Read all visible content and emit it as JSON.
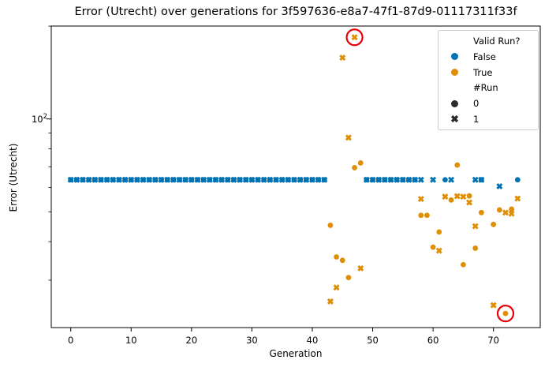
{
  "chart_data": {
    "type": "scatter",
    "title": "Error (Utrecht) over generations for 3f597636-e8a7-47f1-87d9-01117311f33f",
    "xlabel": "Generation",
    "ylabel": "Error (Utrecht)",
    "x_ticks": [
      0,
      10,
      20,
      30,
      40,
      50,
      60,
      70
    ],
    "xlim": [
      -3.2,
      77.7
    ],
    "y_scale": "log",
    "ylim": [
      21.1,
      200.3
    ],
    "grid": false,
    "y_major_ticks": [
      {
        "value": 100,
        "base": "10",
        "exponent": "2"
      }
    ],
    "y_minor_tick_values": [
      200,
      90,
      80,
      70,
      60,
      50,
      40,
      30
    ],
    "legend": {
      "position": "upper right",
      "hue_title": "Valid Run?",
      "hue_entries": [
        {
          "label": "False",
          "color": "#0173b2"
        },
        {
          "label": "True",
          "color": "#de8f05"
        }
      ],
      "style_title": "#Run",
      "style_marker_color": "#2b2b2b",
      "style_entries": [
        {
          "label": "0",
          "marker": "circle"
        },
        {
          "label": "1",
          "marker": "x"
        }
      ]
    },
    "series": [
      {
        "name": "False",
        "valid": "False",
        "color": "#0173b2",
        "runs": [
          {
            "run": 0,
            "marker": "circle",
            "points": [
              [
                0,
                63.5
              ],
              [
                1,
                63.5
              ],
              [
                2,
                63.5
              ],
              [
                3,
                63.5
              ],
              [
                4,
                63.5
              ],
              [
                5,
                63.5
              ],
              [
                6,
                63.5
              ],
              [
                7,
                63.5
              ],
              [
                8,
                63.5
              ],
              [
                9,
                63.5
              ],
              [
                10,
                63.5
              ],
              [
                11,
                63.5
              ],
              [
                12,
                63.5
              ],
              [
                13,
                63.5
              ],
              [
                14,
                63.5
              ],
              [
                15,
                63.5
              ],
              [
                16,
                63.5
              ],
              [
                17,
                63.5
              ],
              [
                18,
                63.5
              ],
              [
                19,
                63.5
              ],
              [
                20,
                63.5
              ],
              [
                21,
                63.5
              ],
              [
                22,
                63.5
              ],
              [
                23,
                63.5
              ],
              [
                24,
                63.5
              ],
              [
                25,
                63.5
              ],
              [
                26,
                63.5
              ],
              [
                27,
                63.5
              ],
              [
                28,
                63.5
              ],
              [
                29,
                63.5
              ],
              [
                30,
                63.5
              ],
              [
                31,
                63.5
              ],
              [
                32,
                63.5
              ],
              [
                33,
                63.5
              ],
              [
                34,
                63.5
              ],
              [
                35,
                63.5
              ],
              [
                36,
                63.5
              ],
              [
                37,
                63.5
              ],
              [
                38,
                63.5
              ],
              [
                39,
                63.5
              ],
              [
                40,
                63.5
              ],
              [
                41,
                63.5
              ],
              [
                42,
                63.5
              ],
              [
                49,
                63.5
              ],
              [
                50,
                63.5
              ],
              [
                51,
                63.5
              ],
              [
                52,
                63.5
              ],
              [
                53,
                63.5
              ],
              [
                54,
                63.5
              ],
              [
                55,
                63.5
              ],
              [
                56,
                63.5
              ],
              [
                57,
                63.5
              ],
              [
                62,
                63.5
              ],
              [
                68,
                63.5
              ],
              [
                74,
                63.5
              ]
            ]
          },
          {
            "run": 1,
            "marker": "x",
            "points": [
              [
                0,
                63.5
              ],
              [
                1,
                63.5
              ],
              [
                2,
                63.5
              ],
              [
                3,
                63.5
              ],
              [
                4,
                63.5
              ],
              [
                5,
                63.5
              ],
              [
                6,
                63.5
              ],
              [
                7,
                63.5
              ],
              [
                8,
                63.5
              ],
              [
                9,
                63.5
              ],
              [
                10,
                63.5
              ],
              [
                11,
                63.5
              ],
              [
                12,
                63.5
              ],
              [
                13,
                63.5
              ],
              [
                14,
                63.5
              ],
              [
                15,
                63.5
              ],
              [
                16,
                63.5
              ],
              [
                17,
                63.5
              ],
              [
                18,
                63.5
              ],
              [
                19,
                63.5
              ],
              [
                20,
                63.5
              ],
              [
                21,
                63.5
              ],
              [
                22,
                63.5
              ],
              [
                23,
                63.5
              ],
              [
                24,
                63.5
              ],
              [
                25,
                63.5
              ],
              [
                26,
                63.5
              ],
              [
                27,
                63.5
              ],
              [
                28,
                63.5
              ],
              [
                29,
                63.5
              ],
              [
                30,
                63.5
              ],
              [
                31,
                63.5
              ],
              [
                32,
                63.5
              ],
              [
                33,
                63.5
              ],
              [
                34,
                63.5
              ],
              [
                35,
                63.5
              ],
              [
                36,
                63.5
              ],
              [
                37,
                63.5
              ],
              [
                38,
                63.5
              ],
              [
                39,
                63.5
              ],
              [
                40,
                63.5
              ],
              [
                41,
                63.5
              ],
              [
                42,
                63.5
              ],
              [
                49,
                63.5
              ],
              [
                50,
                63.5
              ],
              [
                51,
                63.5
              ],
              [
                52,
                63.5
              ],
              [
                53,
                63.5
              ],
              [
                54,
                63.5
              ],
              [
                55,
                63.5
              ],
              [
                56,
                63.5
              ],
              [
                57,
                63.5
              ],
              [
                58,
                63.5
              ],
              [
                60,
                63.5
              ],
              [
                63,
                63.5
              ],
              [
                67,
                63.5
              ],
              [
                68,
                63.5
              ],
              [
                71,
                60.5
              ]
            ]
          }
        ]
      },
      {
        "name": "True",
        "valid": "True",
        "color": "#de8f05",
        "runs": [
          {
            "run": 0,
            "marker": "circle",
            "points": [
              [
                43,
                45.2
              ],
              [
                44,
                35.7
              ],
              [
                45,
                34.8
              ],
              [
                46,
                30.6
              ],
              [
                47,
                69.5
              ],
              [
                48,
                72
              ],
              [
                58,
                48.7
              ],
              [
                59,
                48.7
              ],
              [
                60,
                38.4
              ],
              [
                61,
                43
              ],
              [
                63,
                54.6
              ],
              [
                64,
                70.9
              ],
              [
                65,
                33.7
              ],
              [
                66,
                56.3
              ],
              [
                67,
                38.1
              ],
              [
                68,
                49.7
              ],
              [
                70,
                45.5
              ],
              [
                71,
                50.7
              ],
              [
                72,
                23.4
              ],
              [
                73,
                51
              ]
            ]
          },
          {
            "run": 1,
            "marker": "x",
            "points": [
              [
                43,
                25.6
              ],
              [
                44,
                28.4
              ],
              [
                45,
                158
              ],
              [
                46,
                87
              ],
              [
                47,
                184
              ],
              [
                48,
                32.8
              ],
              [
                58,
                55
              ],
              [
                61,
                37.4
              ],
              [
                62,
                56
              ],
              [
                64,
                56.2
              ],
              [
                65,
                56
              ],
              [
                66,
                53.6
              ],
              [
                67,
                44.9
              ],
              [
                70,
                24.9
              ],
              [
                72,
                49.7
              ],
              [
                73,
                49.3
              ],
              [
                74,
                55.2
              ]
            ]
          }
        ]
      }
    ],
    "annotations": {
      "shape": "circle-outline",
      "color": "#e8000b",
      "circled_points": [
        [
          47,
          184
        ],
        [
          72,
          23.4
        ]
      ]
    }
  }
}
